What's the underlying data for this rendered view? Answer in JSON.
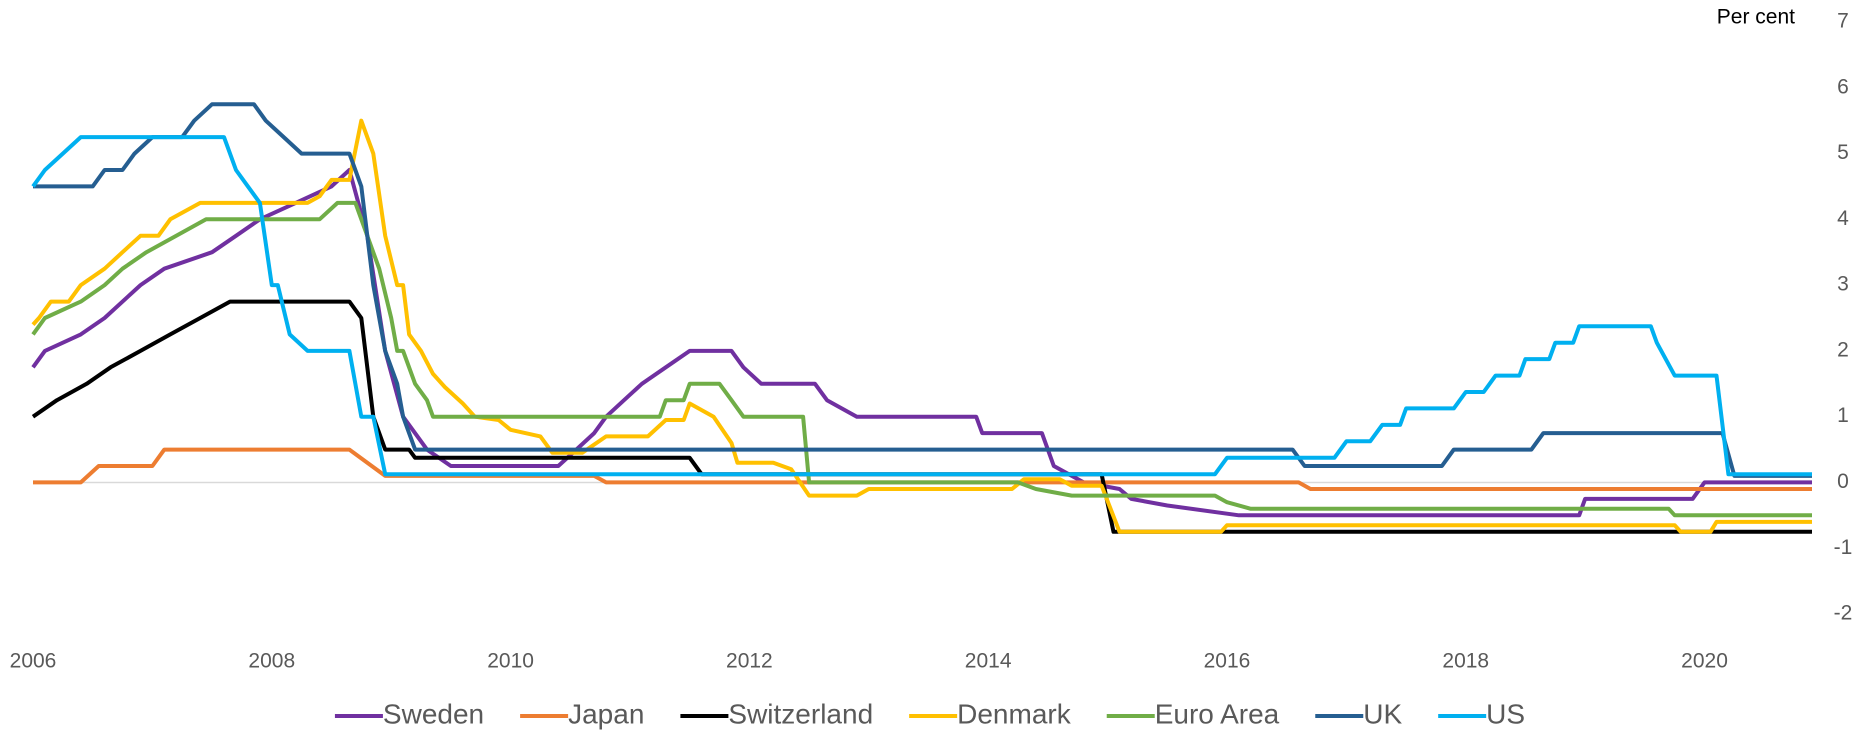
{
  "chart_data": {
    "type": "line",
    "y_label": "Per cent",
    "xlim": [
      2006,
      2020.9
    ],
    "xticks": [
      2006,
      2008,
      2010,
      2012,
      2014,
      2016,
      2018,
      2020
    ],
    "ylim": [
      -2,
      7
    ],
    "yticks": [
      -2,
      -1,
      0,
      1,
      2,
      3,
      4,
      5,
      6,
      7
    ],
    "y_axis_side": "right",
    "zero_line": true,
    "legend": "bottom",
    "series": [
      {
        "name": "Sweden",
        "color": "#7030a0",
        "x": [
          2006,
          2006.1,
          2006.4,
          2006.6,
          2006.9,
          2007.1,
          2007.5,
          2007.7,
          2007.9,
          2008.2,
          2008.5,
          2008.65,
          2008.8,
          2008.95,
          2009.1,
          2009.3,
          2009.5,
          2010.4,
          2010.55,
          2010.7,
          2010.8,
          2010.95,
          2011.1,
          2011.3,
          2011.5,
          2011.85,
          2011.95,
          2012.1,
          2012.55,
          2012.65,
          2012.9,
          2013.9,
          2013.95,
          2014.45,
          2014.55,
          2014.8,
          2015.1,
          2015.2,
          2015.5,
          2016.1,
          2018.95,
          2019.0,
          2019.9,
          2020.0,
          2020.9
        ],
        "values": [
          1.75,
          2.0,
          2.25,
          2.5,
          3.0,
          3.25,
          3.5,
          3.75,
          4.0,
          4.25,
          4.5,
          4.75,
          3.75,
          2.0,
          1.0,
          0.5,
          0.25,
          0.25,
          0.5,
          0.75,
          1.0,
          1.25,
          1.5,
          1.75,
          2.0,
          2.0,
          1.75,
          1.5,
          1.5,
          1.25,
          1.0,
          1.0,
          0.75,
          0.75,
          0.25,
          0,
          -0.1,
          -0.25,
          -0.35,
          -0.5,
          -0.5,
          -0.25,
          -0.25,
          0,
          0
        ]
      },
      {
        "name": "Japan",
        "color": "#ed7d31",
        "x": [
          2006,
          2006.4,
          2006.55,
          2007.0,
          2007.1,
          2008.65,
          2008.8,
          2008.95,
          2010.7,
          2010.8,
          2016.6,
          2016.7,
          2020.9
        ],
        "values": [
          0,
          0,
          0.25,
          0.25,
          0.5,
          0.5,
          0.3,
          0.1,
          0.1,
          0,
          0,
          -0.1,
          -0.1
        ]
      },
      {
        "name": "Switzerland",
        "color": "#000000",
        "x": [
          2006,
          2006.2,
          2006.45,
          2006.65,
          2006.9,
          2007.15,
          2007.4,
          2007.65,
          2008.65,
          2008.75,
          2008.85,
          2008.95,
          2009.15,
          2009.2,
          2011.5,
          2011.6,
          2014.95,
          2015.05,
          2020.9
        ],
        "values": [
          1.0,
          1.25,
          1.5,
          1.75,
          2.0,
          2.25,
          2.5,
          2.75,
          2.75,
          2.5,
          1.0,
          0.5,
          0.5,
          0.375,
          0.375,
          0.125,
          0.125,
          -0.75,
          -0.75
        ]
      },
      {
        "name": "Denmark",
        "color": "#ffc000",
        "x": [
          2006,
          2006.05,
          2006.15,
          2006.3,
          2006.4,
          2006.6,
          2006.75,
          2006.9,
          2007.05,
          2007.15,
          2007.4,
          2008.3,
          2008.4,
          2008.5,
          2008.65,
          2008.75,
          2008.85,
          2008.95,
          2009.05,
          2009.1,
          2009.15,
          2009.25,
          2009.35,
          2009.45,
          2009.6,
          2009.7,
          2009.9,
          2010.0,
          2010.25,
          2010.35,
          2010.6,
          2010.8,
          2011.15,
          2011.3,
          2011.45,
          2011.5,
          2011.7,
          2011.85,
          2011.9,
          2012.2,
          2012.35,
          2012.5,
          2012.9,
          2013.0,
          2014.2,
          2014.3,
          2014.6,
          2014.7,
          2014.95,
          2015.1,
          2015.95,
          2016.0,
          2019.75,
          2019.8,
          2020.05,
          2020.1,
          2020.9
        ],
        "values": [
          2.4,
          2.5,
          2.75,
          2.75,
          3.0,
          3.25,
          3.5,
          3.75,
          3.75,
          4.0,
          4.25,
          4.25,
          4.35,
          4.6,
          4.6,
          5.5,
          5.0,
          3.75,
          3.0,
          3.0,
          2.25,
          2.0,
          1.65,
          1.45,
          1.2,
          1.0,
          0.95,
          0.8,
          0.7,
          0.45,
          0.45,
          0.7,
          0.7,
          0.95,
          0.95,
          1.2,
          1.0,
          0.6,
          0.3,
          0.3,
          0.2,
          -0.2,
          -0.2,
          -0.1,
          -0.1,
          0.05,
          0.05,
          -0.05,
          -0.05,
          -0.75,
          -0.75,
          -0.65,
          -0.65,
          -0.75,
          -0.75,
          -0.6,
          -0.6
        ]
      },
      {
        "name": "Euro Area",
        "color": "#70ad47",
        "x": [
          2006,
          2006.1,
          2006.4,
          2006.6,
          2006.75,
          2006.95,
          2007.2,
          2007.45,
          2008.4,
          2008.55,
          2008.7,
          2008.8,
          2008.9,
          2009.0,
          2009.05,
          2009.1,
          2009.2,
          2009.3,
          2009.35,
          2011.25,
          2011.3,
          2011.45,
          2011.5,
          2011.75,
          2011.85,
          2011.95,
          2012.45,
          2012.5,
          2014.25,
          2014.4,
          2014.7,
          2015.9,
          2016.0,
          2016.2,
          2019.7,
          2019.75,
          2020.9
        ],
        "values": [
          2.25,
          2.5,
          2.75,
          3.0,
          3.25,
          3.5,
          3.75,
          4.0,
          4.0,
          4.25,
          4.25,
          3.75,
          3.25,
          2.5,
          2.0,
          2.0,
          1.5,
          1.25,
          1.0,
          1.0,
          1.25,
          1.25,
          1.5,
          1.5,
          1.25,
          1.0,
          1.0,
          0.0,
          0.0,
          -0.1,
          -0.2,
          -0.2,
          -0.3,
          -0.4,
          -0.4,
          -0.5,
          -0.5
        ]
      },
      {
        "name": "UK",
        "color": "#255e91",
        "x": [
          2006,
          2006.5,
          2006.6,
          2006.75,
          2006.85,
          2007.0,
          2007.25,
          2007.35,
          2007.5,
          2007.85,
          2007.95,
          2008.1,
          2008.25,
          2008.65,
          2008.75,
          2008.85,
          2008.95,
          2009.05,
          2009.1,
          2009.2,
          2016.55,
          2016.65,
          2017.8,
          2017.9,
          2018.55,
          2018.65,
          2020.15,
          2020.25,
          2020.9
        ],
        "values": [
          4.5,
          4.5,
          4.75,
          4.75,
          5.0,
          5.25,
          5.25,
          5.5,
          5.75,
          5.75,
          5.5,
          5.25,
          5.0,
          5.0,
          4.5,
          3.0,
          2.0,
          1.5,
          1.0,
          0.5,
          0.5,
          0.25,
          0.25,
          0.5,
          0.5,
          0.75,
          0.75,
          0.1,
          0.1
        ]
      },
      {
        "name": "US",
        "color": "#00b0f0",
        "x": [
          2006,
          2006.1,
          2006.25,
          2006.4,
          2007.6,
          2007.7,
          2007.8,
          2007.9,
          2008.0,
          2008.05,
          2008.15,
          2008.3,
          2008.65,
          2008.75,
          2008.85,
          2008.95,
          2015.9,
          2016.0,
          2016.9,
          2017.0,
          2017.2,
          2017.3,
          2017.45,
          2017.5,
          2017.9,
          2018.0,
          2018.15,
          2018.25,
          2018.45,
          2018.5,
          2018.7,
          2018.75,
          2018.9,
          2018.95,
          2019.55,
          2019.6,
          2019.75,
          2020.1,
          2020.2,
          2020.9
        ],
        "values": [
          4.5,
          4.75,
          5.0,
          5.25,
          5.25,
          4.75,
          4.5,
          4.25,
          3.0,
          3.0,
          2.25,
          2.0,
          2.0,
          1.0,
          1.0,
          0.125,
          0.125,
          0.375,
          0.375,
          0.625,
          0.625,
          0.875,
          0.875,
          1.125,
          1.125,
          1.375,
          1.375,
          1.625,
          1.625,
          1.875,
          1.875,
          2.125,
          2.125,
          2.375,
          2.375,
          2.125,
          1.625,
          1.625,
          0.125,
          0.125
        ]
      }
    ]
  }
}
